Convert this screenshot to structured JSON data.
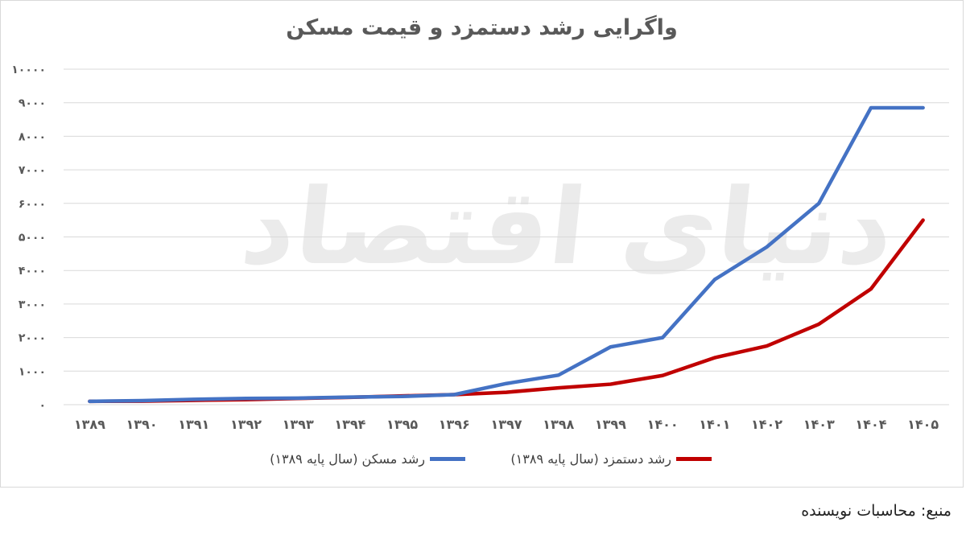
{
  "watermark": "دنیای اقتصاد",
  "source_note": "منبع: محاسبات نویسنده",
  "colors": {
    "housing": "#4472c4",
    "wage": "#c00000",
    "grid": "#d9d9d9",
    "tick_text": "#595959"
  },
  "chart_data": {
    "type": "line",
    "title": "واگرایی رشد دستمزد و قیمت مسکن",
    "xlabel": "",
    "ylabel": "",
    "categories": [
      "۱۳۸۹",
      "۱۳۹۰",
      "۱۳۹۱",
      "۱۳۹۲",
      "۱۳۹۳",
      "۱۳۹۴",
      "۱۳۹۵",
      "۱۳۹۶",
      "۱۳۹۷",
      "۱۳۹۸",
      "۱۳۹۹",
      "۱۴۰۰",
      "۱۴۰۱",
      "۱۴۰۲",
      "۱۴۰۳",
      "۱۴۰۴",
      "۱۴۰۵"
    ],
    "ylim": [
      0,
      10000
    ],
    "yticks": [
      0,
      1000,
      2000,
      3000,
      4000,
      5000,
      6000,
      7000,
      8000,
      9000,
      10000
    ],
    "ytick_labels": [
      "۰",
      "۱۰۰۰",
      "۲۰۰۰",
      "۳۰۰۰",
      "۴۰۰۰",
      "۵۰۰۰",
      "۶۰۰۰",
      "۷۰۰۰",
      "۸۰۰۰",
      "۹۰۰۰",
      "۱۰۰۰۰"
    ],
    "grid": true,
    "legend_position": "bottom",
    "series": [
      {
        "name": "رشد مسکن (سال پایه ۱۳۸۹)",
        "color": "#4472c4",
        "values": [
          100,
          120,
          160,
          185,
          195,
          225,
          245,
          300,
          630,
          880,
          1720,
          2000,
          3730,
          4700,
          6000,
          8850,
          8850
        ]
      },
      {
        "name": "رشد دستمزد (سال پایه ۱۳۸۹)",
        "color": "#c00000",
        "values": [
          100,
          105,
          130,
          150,
          185,
          220,
          260,
          300,
          370,
          500,
          610,
          870,
          1400,
          1750,
          2400,
          3450,
          5500
        ]
      }
    ]
  }
}
